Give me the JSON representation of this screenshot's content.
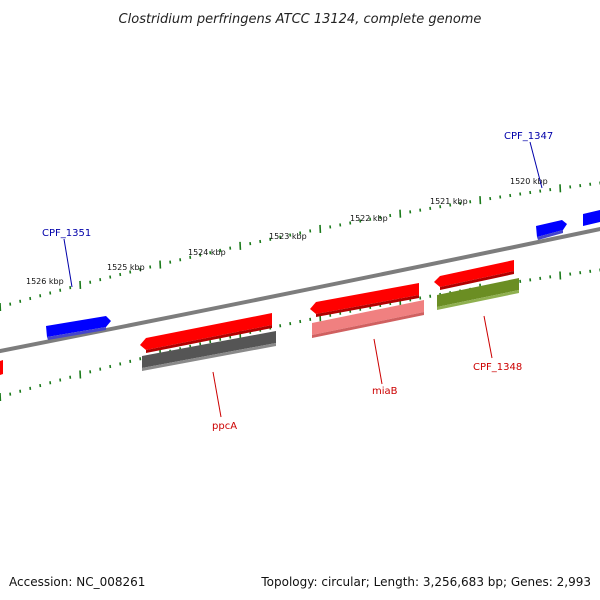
{
  "title": "Clostridium perfringens ATCC 13124, complete genome",
  "footer": {
    "accession": "Accession: NC_008261",
    "stats": "Topology: circular; Length: 3,256,683 bp; Genes: 2,993"
  },
  "ticks": {
    "labels": [
      "1526 kbp",
      "1525 kbp",
      "1524 kbp",
      "1523 kbp",
      "1522 kbp",
      "1521 kbp",
      "1520 kbp"
    ]
  },
  "gene_labels": {
    "cpf1351": "CPF_1351",
    "cpf1347": "CPF_1347",
    "ppcA": "ppcA",
    "miaB": "miaB",
    "cpf1348": "CPF_1348"
  },
  "colors": {
    "backbone": "#808080",
    "forward_gene": "#0000ff",
    "reverse_gene": "#ff0000",
    "tick": "#1a7a1a",
    "gray_feature": "#555555",
    "pink_feature": "#f08080",
    "olive_feature": "#6b8e23",
    "label_blue": "#0000aa",
    "label_red": "#cc0000"
  }
}
